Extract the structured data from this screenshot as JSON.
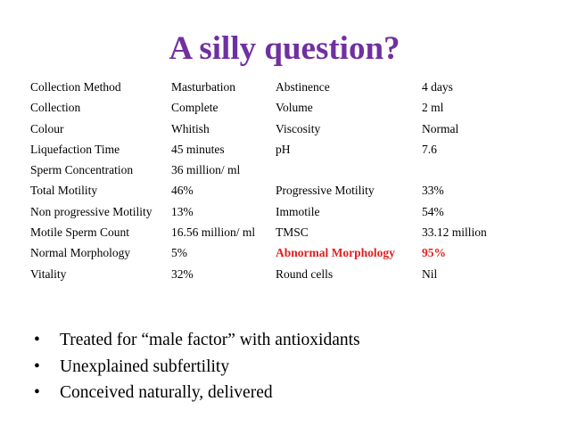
{
  "title": "A silly question?",
  "highlight_color": "#e02020",
  "title_color": "#7030a0",
  "table": {
    "rows": [
      {
        "label1": "Collection Method",
        "value1": "Masturbation",
        "label2": "Abstinence",
        "value2": "4 days"
      },
      {
        "label1": "Collection",
        "value1": "Complete",
        "label2": "Volume",
        "value2": "2 ml"
      },
      {
        "label1": "Colour",
        "value1": "Whitish",
        "label2": "Viscosity",
        "value2": "Normal"
      },
      {
        "label1": "Liquefaction Time",
        "value1": "45 minutes",
        "label2": "pH",
        "value2": "7.6"
      },
      {
        "label1": "Sperm Concentration",
        "value1": "36 million/ ml",
        "label2": "",
        "value2": ""
      },
      {
        "label1": "Total Motility",
        "value1": "46%",
        "label2": "Progressive Motility",
        "value2": "33%"
      },
      {
        "label1": "Non progressive Motility",
        "value1": "13%",
        "label2": "Immotile",
        "value2": "54%"
      },
      {
        "label1": "Motile Sperm Count",
        "value1": "16.56 million/ ml",
        "label2": "TMSC",
        "value2": "33.12 million"
      },
      {
        "label1": "Normal Morphology",
        "value1": "5%",
        "label2": "Abnormal Morphology",
        "value2": "95%",
        "highlight": true
      },
      {
        "label1": "Vitality",
        "value1": "32%",
        "label2": "Round cells",
        "value2": "Nil"
      }
    ]
  },
  "bullets": {
    "marker": "•",
    "items": [
      "Treated for “male factor” with antioxidants",
      "Unexplained subfertility",
      "Conceived naturally, delivered"
    ]
  }
}
